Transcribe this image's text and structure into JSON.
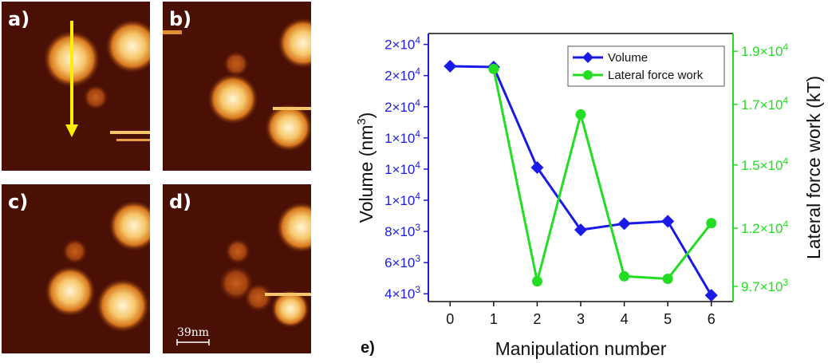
{
  "panels": [
    {
      "label": "a)"
    },
    {
      "label": "b)"
    },
    {
      "label": "c)"
    },
    {
      "label": "d)",
      "scale_bar_label": "39nm"
    }
  ],
  "panel_e_label": "e)",
  "colors": {
    "volume": "#1a1ae6",
    "force": "#22dd22",
    "arrow": "#ffee00",
    "afm_dark": "#3a0a02",
    "afm_bright": "#fff2c8"
  },
  "chart_data": {
    "type": "line",
    "xlabel": "Manipulation number",
    "x": [
      0,
      1,
      2,
      3,
      4,
      5,
      6
    ],
    "x_ticks": [
      "0",
      "1",
      "2",
      "3",
      "4",
      "5",
      "6"
    ],
    "xlim": [
      -0.5,
      6.5
    ],
    "left_axis": {
      "label": "Volume (nm",
      "label_sup": "3",
      "label_end": ")",
      "ylim": [
        3500,
        20700
      ],
      "ticks": [
        {
          "value": 4000,
          "mant": "4×10",
          "exp": "3"
        },
        {
          "value": 6000,
          "mant": "6×10",
          "exp": "3"
        },
        {
          "value": 8000,
          "mant": "8×10",
          "exp": "3"
        },
        {
          "value": 10000,
          "mant": "1×10",
          "exp": "4"
        },
        {
          "value": 12000,
          "mant": "1×10",
          "exp": "4"
        },
        {
          "value": 14000,
          "mant": "1×10",
          "exp": "4"
        },
        {
          "value": 16000,
          "mant": "2×10",
          "exp": "4"
        },
        {
          "value": 18000,
          "mant": "2×10",
          "exp": "4"
        },
        {
          "value": 20000,
          "mant": "2×10",
          "exp": "4"
        }
      ]
    },
    "right_axis": {
      "label": "Lateral force work (kT)",
      "ylim": [
        9100,
        19700
      ],
      "ticks": [
        {
          "value": 9700,
          "mant": "9.7×10",
          "exp": "3"
        },
        {
          "value": 12000,
          "mant": "1.2×10",
          "exp": "4"
        },
        {
          "value": 14500,
          "mant": "1.5×10",
          "exp": "4"
        },
        {
          "value": 16900,
          "mant": "1.7×10",
          "exp": "4"
        },
        {
          "value": 19000,
          "mant": "1.9×10",
          "exp": "4"
        }
      ]
    },
    "series": [
      {
        "name": "Volume",
        "axis": "left",
        "marker": "diamond",
        "x": [
          0,
          1,
          2,
          3,
          4,
          5,
          6
        ],
        "values": [
          18600,
          18550,
          12100,
          8100,
          8500,
          8650,
          3900
        ]
      },
      {
        "name": "Lateral force work",
        "axis": "right",
        "marker": "circle",
        "x": [
          1,
          2,
          3,
          4,
          5,
          6
        ],
        "values": [
          18300,
          9900,
          16500,
          10100,
          10000,
          12200
        ]
      }
    ],
    "legend": {
      "position": "top-right",
      "entries": [
        "Volume",
        "Lateral force work"
      ]
    }
  }
}
